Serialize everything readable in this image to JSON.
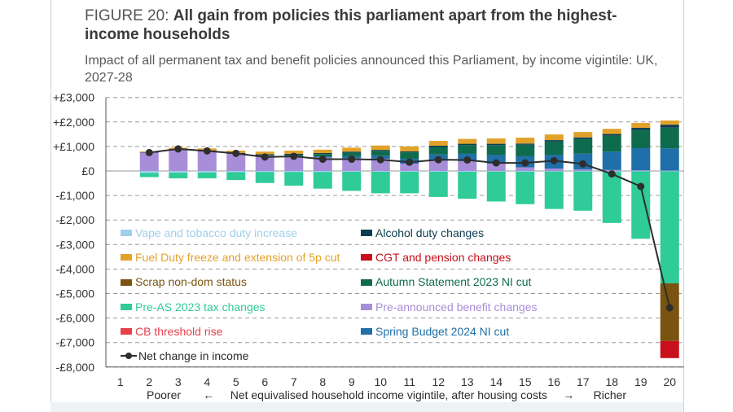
{
  "header": {
    "figure_label": "FIGURE 20:",
    "title_bold": "All gain from policies this parliament apart from the highest-income households",
    "subtitle": "Impact of all permanent tax and benefit policies announced this Parliament, by income vigintile: UK, 2027-28"
  },
  "x_axis": {
    "poorer": "Poorer",
    "left_arrow": "←",
    "label": "Net equivalised household income vigintile, after housing costs",
    "right_arrow": "→",
    "richer": "Richer"
  },
  "colors": {
    "vape": "#9fd0ea",
    "fuel": "#e2a22a",
    "nondom": "#7a5310",
    "preas": "#2fcb98",
    "cb": "#e8404a",
    "alcohol": "#0c3d50",
    "cgt": "#c8101c",
    "as2023": "#0f6b4e",
    "benefit": "#a88ed9",
    "sb2024": "#1f6fa8",
    "net": "#2e2e2e",
    "grid": "#9a9a9a",
    "axis": "#555555"
  },
  "legend": [
    {
      "key": "vape",
      "label": "Vape and tobacco duty increase"
    },
    {
      "key": "alcohol",
      "label": "Alcohol duty changes"
    },
    {
      "key": "fuel",
      "label": "Fuel Duty freeze and extension of 5p cut"
    },
    {
      "key": "cgt",
      "label": "CGT and pension changes"
    },
    {
      "key": "nondom",
      "label": "Scrap non-dom status"
    },
    {
      "key": "as2023",
      "label": "Autumn Statement 2023 NI cut"
    },
    {
      "key": "preas",
      "label": "Pre-AS 2023 tax changes"
    },
    {
      "key": "benefit",
      "label": "Pre-announced benefit changes"
    },
    {
      "key": "cb",
      "label": "CB threshold rise"
    },
    {
      "key": "sb2024",
      "label": "Spring Budget 2024 NI cut"
    },
    {
      "key": "net",
      "label": "Net change in income"
    }
  ],
  "chart_data": {
    "type": "bar",
    "stacked": true,
    "title": "All gain from policies this parliament apart from the highest-income households",
    "xlabel": "Net equivalised household income vigintile, after housing costs",
    "ylabel": "",
    "ylim": [
      -8000,
      3000
    ],
    "yticks": [
      3000,
      2000,
      1000,
      0,
      -1000,
      -2000,
      -3000,
      -4000,
      -5000,
      -6000,
      -7000,
      -8000
    ],
    "ytick_labels": [
      "+£3,000",
      "+£2,000",
      "+£1,000",
      "£0",
      "-£1,000",
      "-£2,000",
      "-£3,000",
      "-£4,000",
      "-£5,000",
      "-£6,000",
      "-£7,000",
      "-£8,000"
    ],
    "categories": [
      "1",
      "2",
      "3",
      "4",
      "5",
      "6",
      "7",
      "8",
      "9",
      "10",
      "11",
      "12",
      "13",
      "14",
      "15",
      "16",
      "17",
      "18",
      "19",
      "20"
    ],
    "series": [
      {
        "name": "Pre-announced benefit changes",
        "key": "benefit",
        "values": [
          0,
          750,
          850,
          800,
          700,
          620,
          580,
          550,
          520,
          500,
          300,
          420,
          400,
          300,
          150,
          100,
          60,
          40,
          30,
          20
        ]
      },
      {
        "name": "Spring Budget 2024 NI cut",
        "key": "sb2024",
        "values": [
          0,
          0,
          0,
          0,
          0,
          0,
          20,
          40,
          80,
          120,
          200,
          250,
          300,
          350,
          450,
          550,
          650,
          750,
          900,
          900
        ]
      },
      {
        "name": "Autumn Statement 2023 NI cut",
        "key": "as2023",
        "values": [
          0,
          0,
          0,
          0,
          0,
          20,
          60,
          100,
          150,
          200,
          260,
          310,
          360,
          410,
          470,
          550,
          600,
          650,
          750,
          850
        ]
      },
      {
        "name": "Alcohol duty changes",
        "key": "alcohol",
        "values": [
          0,
          20,
          40,
          40,
          40,
          40,
          40,
          40,
          40,
          40,
          40,
          50,
          50,
          50,
          50,
          60,
          60,
          70,
          80,
          120
        ]
      },
      {
        "name": "Fuel Duty freeze and extension of 5p cut",
        "key": "fuel",
        "values": [
          0,
          30,
          60,
          80,
          90,
          110,
          130,
          140,
          160,
          180,
          200,
          200,
          200,
          220,
          240,
          230,
          220,
          210,
          200,
          170
        ]
      },
      {
        "name": "Vape and tobacco duty increase",
        "key": "vape",
        "values": [
          0,
          -80,
          -70,
          -60,
          -50,
          -40,
          -40,
          -40,
          -30,
          -30,
          -30,
          -30,
          -30,
          -25,
          -25,
          -20,
          -20,
          -20,
          -15,
          -15
        ]
      },
      {
        "name": "Pre-AS 2023 tax changes",
        "key": "preas",
        "values": [
          0,
          -170,
          -230,
          -240,
          -320,
          -450,
          -560,
          -680,
          -780,
          -880,
          -880,
          -1030,
          -1100,
          -1220,
          -1330,
          -1530,
          -1600,
          -2100,
          -2750,
          -4570
        ]
      },
      {
        "name": "Scrap non-dom status",
        "key": "nondom",
        "values": [
          0,
          0,
          0,
          0,
          0,
          0,
          0,
          0,
          0,
          0,
          0,
          0,
          0,
          0,
          0,
          0,
          0,
          0,
          0,
          -2350
        ]
      },
      {
        "name": "CGT and pension changes",
        "key": "cgt",
        "values": [
          0,
          0,
          0,
          0,
          0,
          0,
          0,
          0,
          0,
          0,
          0,
          0,
          0,
          0,
          0,
          0,
          0,
          0,
          0,
          -700
        ]
      },
      {
        "name": "CB threshold rise",
        "key": "cb",
        "values": [
          0,
          0,
          0,
          0,
          0,
          0,
          0,
          0,
          0,
          0,
          0,
          0,
          0,
          0,
          0,
          0,
          0,
          0,
          0,
          0
        ]
      }
    ],
    "net_change": [
      null,
      750,
      900,
      820,
      720,
      570,
      600,
      480,
      480,
      460,
      360,
      460,
      450,
      330,
      330,
      420,
      290,
      -120,
      -630,
      -5580
    ]
  }
}
